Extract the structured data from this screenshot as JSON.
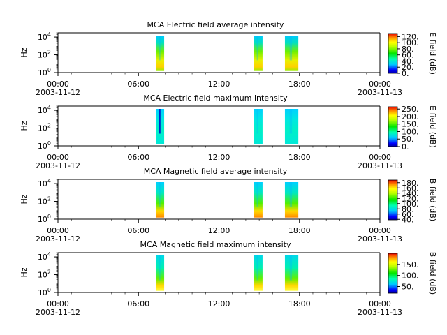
{
  "figure": {
    "xtick_labels": [
      "00:00",
      "06:00",
      "12:00",
      "18:00",
      "00:00"
    ],
    "date_labels": [
      "2003-11-12",
      "2003-11-13"
    ]
  },
  "chart_data": [
    {
      "type": "heatmap",
      "title": "MCA  Electric field average intensity",
      "ylabel": "Hz",
      "yscale": "log",
      "ylim": [
        1,
        30000
      ],
      "yticks": [
        {
          "exp": "0"
        },
        {
          "exp": "2"
        },
        {
          "exp": "4"
        }
      ],
      "xlim": [
        "2003-11-12 00:00",
        "2003-11-13 00:00"
      ],
      "segments": [
        {
          "start": "2003-11-12 07:20",
          "end": "2003-11-12 07:55"
        },
        {
          "start": "2003-11-12 14:35",
          "end": "2003-11-12 15:15"
        },
        {
          "start": "2003-11-12 16:55",
          "end": "2003-11-12 17:55"
        }
      ],
      "style": "e_avg",
      "colorbar": {
        "label": "E field (dB)",
        "min": 0,
        "max": 130,
        "ticks": [
          "0.",
          "20.",
          "40.",
          "60.",
          "80.",
          "100.",
          "120."
        ],
        "tick_values": [
          0,
          20,
          40,
          60,
          80,
          100,
          120
        ]
      }
    },
    {
      "type": "heatmap",
      "title": "MCA  Electric field maximum intensity",
      "ylabel": "Hz",
      "yscale": "log",
      "ylim": [
        1,
        30000
      ],
      "yticks": [
        {
          "exp": "0"
        },
        {
          "exp": "2"
        },
        {
          "exp": "4"
        }
      ],
      "xlim": [
        "2003-11-12 00:00",
        "2003-11-13 00:00"
      ],
      "segments": [
        {
          "start": "2003-11-12 07:20",
          "end": "2003-11-12 07:55"
        },
        {
          "start": "2003-11-12 14:35",
          "end": "2003-11-12 15:15"
        },
        {
          "start": "2003-11-12 16:55",
          "end": "2003-11-12 17:55"
        }
      ],
      "style": "e_max",
      "colorbar": {
        "label": "E field (dB)",
        "min": 0,
        "max": 265,
        "ticks": [
          "0.",
          "50.",
          "100.",
          "150.",
          "200.",
          "250."
        ],
        "tick_values": [
          0,
          50,
          100,
          150,
          200,
          250
        ]
      }
    },
    {
      "type": "heatmap",
      "title": "MCA  Magnetic field average intensity",
      "ylabel": "Hz",
      "yscale": "log",
      "ylim": [
        1,
        30000
      ],
      "yticks": [
        {
          "exp": "0"
        },
        {
          "exp": "2"
        },
        {
          "exp": "4"
        }
      ],
      "xlim": [
        "2003-11-12 00:00",
        "2003-11-13 00:00"
      ],
      "segments": [
        {
          "start": "2003-11-12 07:20",
          "end": "2003-11-12 07:55"
        },
        {
          "start": "2003-11-12 14:35",
          "end": "2003-11-12 15:15"
        },
        {
          "start": "2003-11-12 16:55",
          "end": "2003-11-12 17:55"
        }
      ],
      "style": "b_avg",
      "colorbar": {
        "label": "B field (dB)",
        "min": 38,
        "max": 190,
        "ticks": [
          "40.",
          "60.",
          "80.",
          "100.",
          "120.",
          "140.",
          "160.",
          "180."
        ],
        "tick_values": [
          40,
          60,
          80,
          100,
          120,
          140,
          160,
          180
        ]
      }
    },
    {
      "type": "heatmap",
      "title": "MCA  Magnetic field maximum intensity",
      "ylabel": "Hz",
      "yscale": "log",
      "ylim": [
        1,
        30000
      ],
      "yticks": [
        {
          "exp": "0"
        },
        {
          "exp": "2"
        },
        {
          "exp": "4"
        }
      ],
      "xlim": [
        "2003-11-12 00:00",
        "2003-11-13 00:00"
      ],
      "segments": [
        {
          "start": "2003-11-12 07:20",
          "end": "2003-11-12 07:55"
        },
        {
          "start": "2003-11-12 14:35",
          "end": "2003-11-12 15:15"
        },
        {
          "start": "2003-11-12 16:55",
          "end": "2003-11-12 17:55"
        }
      ],
      "style": "b_max",
      "colorbar": {
        "label": "B field (dB)",
        "min": 20,
        "max": 200,
        "ticks": [
          "50.",
          "100.",
          "150."
        ],
        "tick_values": [
          50,
          100,
          150
        ]
      }
    }
  ]
}
